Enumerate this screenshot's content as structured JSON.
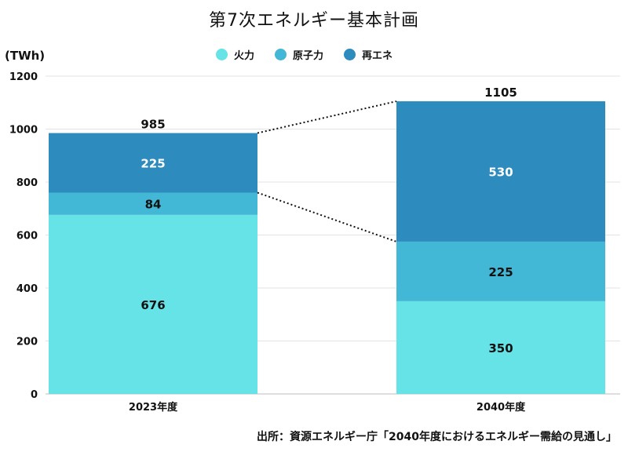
{
  "chart_data": {
    "type": "bar",
    "stacked": true,
    "title": "第7次エネルギー基本計画",
    "ylabel": "(TWh)",
    "ylim": [
      0,
      1200
    ],
    "yticks": [
      0,
      200,
      400,
      600,
      800,
      1000,
      1200
    ],
    "categories": [
      "2023年度",
      "2040年度"
    ],
    "series": [
      {
        "name": "火力",
        "values": [
          676,
          350
        ],
        "color": "#66e3e6",
        "label_color": "#111111"
      },
      {
        "name": "原子力",
        "values": [
          84,
          225
        ],
        "color": "#42b8d6",
        "label_color": "#111111"
      },
      {
        "name": "再エネ",
        "values": [
          225,
          530
        ],
        "color": "#2e8bbd",
        "label_color": "#ffffff"
      }
    ],
    "totals": [
      "985",
      "1105"
    ],
    "connector_lines": "dotted",
    "grid": true,
    "legend_position": "top-center"
  },
  "source_note": "出所：資源エネルギー庁「2040年度におけるエネルギー需給の見通し」"
}
